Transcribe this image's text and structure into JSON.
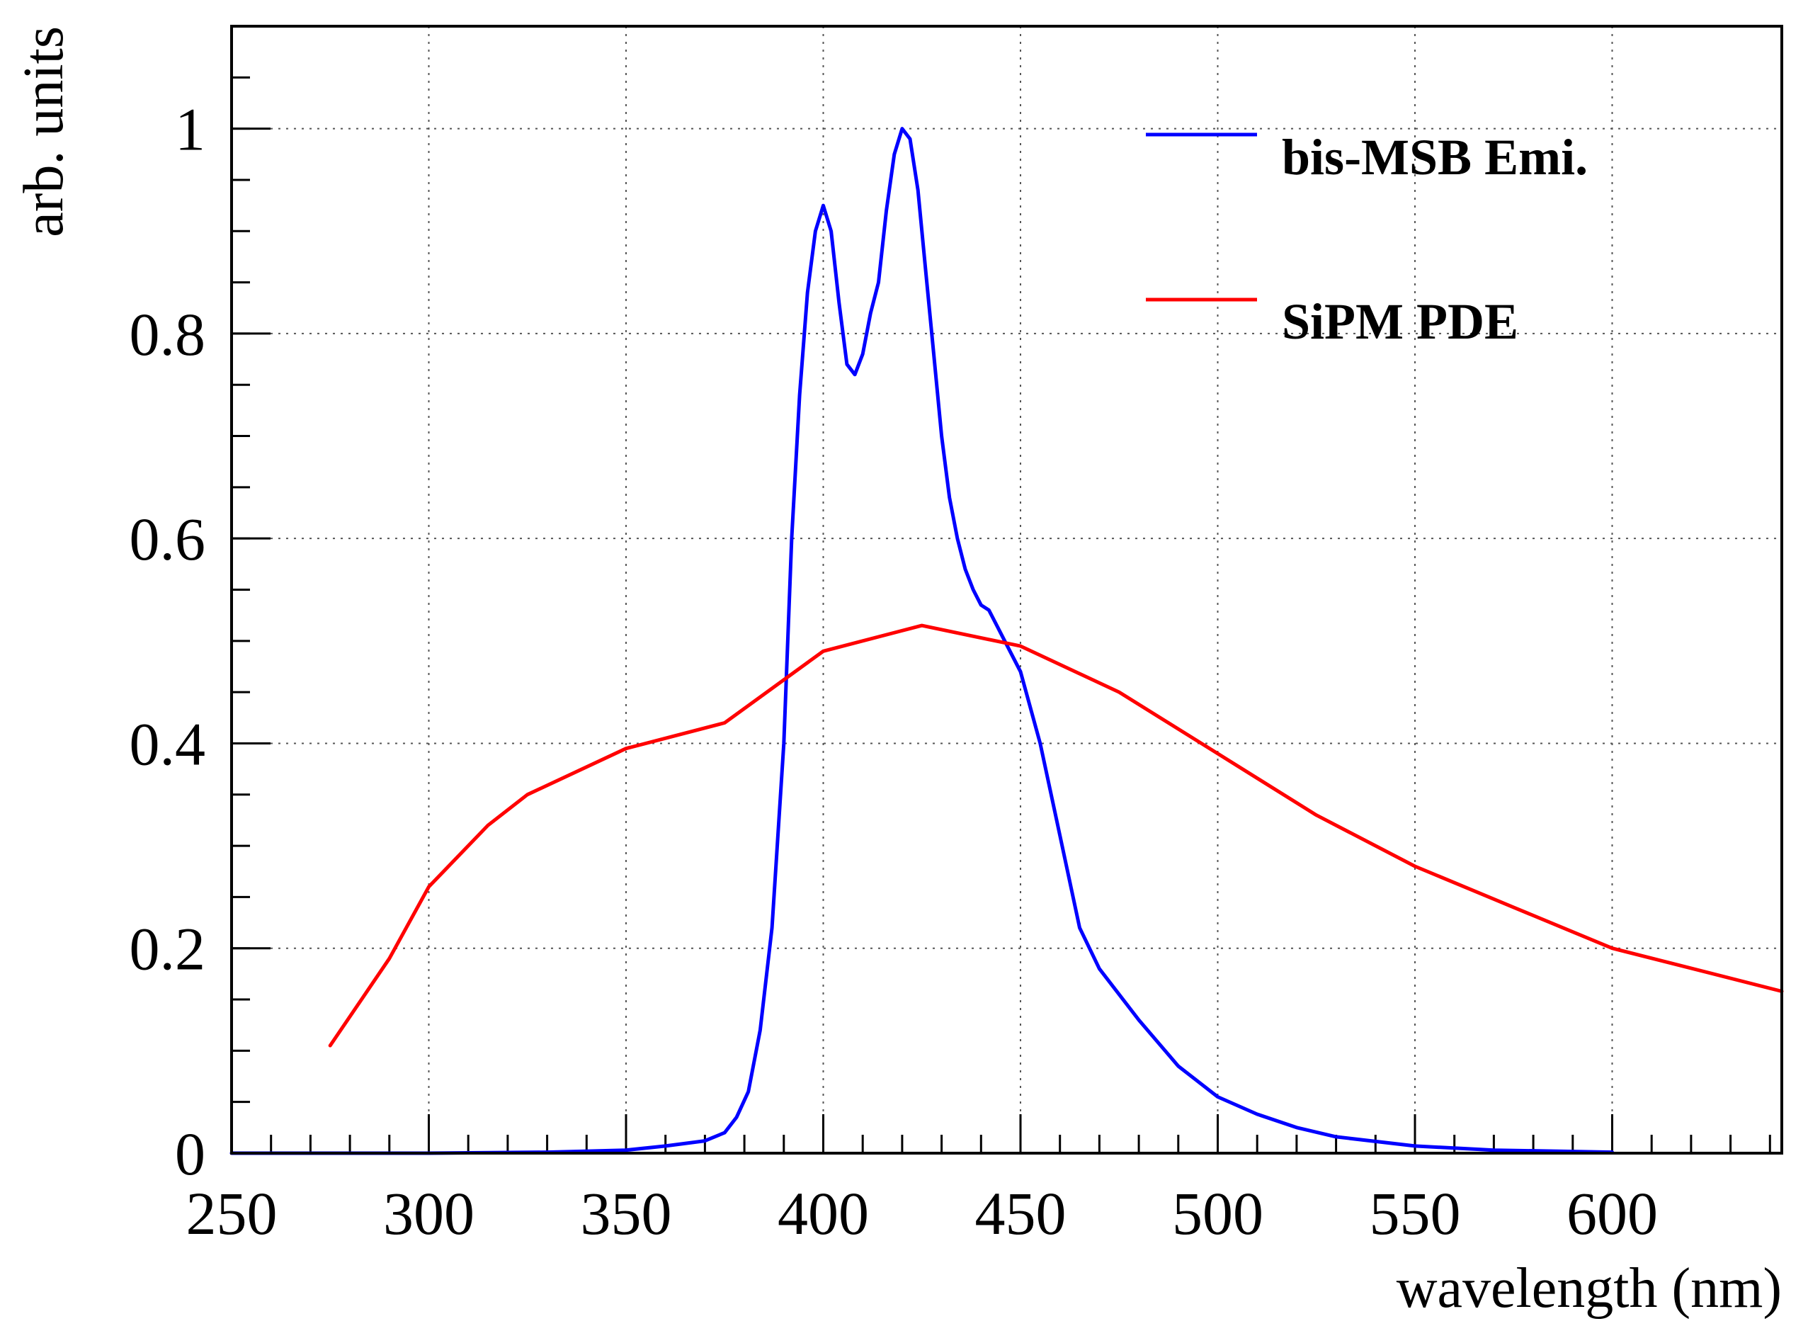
{
  "chart_data": {
    "type": "line",
    "title": "",
    "xlabel": "wavelength (nm)",
    "ylabel": "arb. units",
    "xlim": [
      250,
      643
    ],
    "ylim": [
      0,
      1.1
    ],
    "grid": true,
    "legend_position": "top-right",
    "x_ticks": [
      250,
      300,
      350,
      400,
      450,
      500,
      550,
      600
    ],
    "x_tick_labels": [
      "250",
      "300",
      "350",
      "400",
      "450",
      "500",
      "550",
      "600"
    ],
    "x_minor_step": 10,
    "y_ticks": [
      0,
      0.2,
      0.4,
      0.6,
      0.8,
      1.0
    ],
    "y_tick_labels": [
      "0",
      "0.2",
      "0.4",
      "0.6",
      "0.8",
      "1"
    ],
    "y_minor_step": 0.05,
    "series": [
      {
        "name": "bis-MSB Emi.",
        "color": "#0000ff",
        "x": [
          250,
          300,
          330,
          350,
          360,
          370,
          375,
          378,
          381,
          384,
          387,
          390,
          392,
          394,
          396,
          398,
          400,
          402,
          404,
          406,
          408,
          410,
          412,
          414,
          416,
          418,
          420,
          422,
          424,
          426,
          428,
          430,
          432,
          434,
          436,
          438,
          440,
          442,
          444,
          446,
          450,
          455,
          460,
          465,
          470,
          480,
          490,
          500,
          510,
          520,
          530,
          550,
          570,
          600
        ],
        "values": [
          0,
          0,
          0.001,
          0.003,
          0.007,
          0.012,
          0.02,
          0.035,
          0.06,
          0.12,
          0.22,
          0.4,
          0.6,
          0.74,
          0.84,
          0.9,
          0.925,
          0.9,
          0.83,
          0.77,
          0.76,
          0.78,
          0.82,
          0.85,
          0.92,
          0.975,
          1.0,
          0.99,
          0.94,
          0.86,
          0.78,
          0.7,
          0.64,
          0.6,
          0.57,
          0.55,
          0.535,
          0.53,
          0.515,
          0.5,
          0.47,
          0.4,
          0.31,
          0.22,
          0.18,
          0.13,
          0.085,
          0.055,
          0.038,
          0.025,
          0.016,
          0.007,
          0.003,
          0.001
        ]
      },
      {
        "name": "SiPM PDE",
        "color": "#ff0000",
        "x": [
          275,
          290,
          300,
          315,
          325,
          350,
          375,
          400,
          425,
          450,
          475,
          500,
          525,
          550,
          575,
          600,
          643
        ],
        "values": [
          0.105,
          0.19,
          0.26,
          0.32,
          0.35,
          0.395,
          0.42,
          0.49,
          0.515,
          0.495,
          0.45,
          0.39,
          0.33,
          0.28,
          0.24,
          0.2,
          0.158
        ]
      }
    ]
  }
}
